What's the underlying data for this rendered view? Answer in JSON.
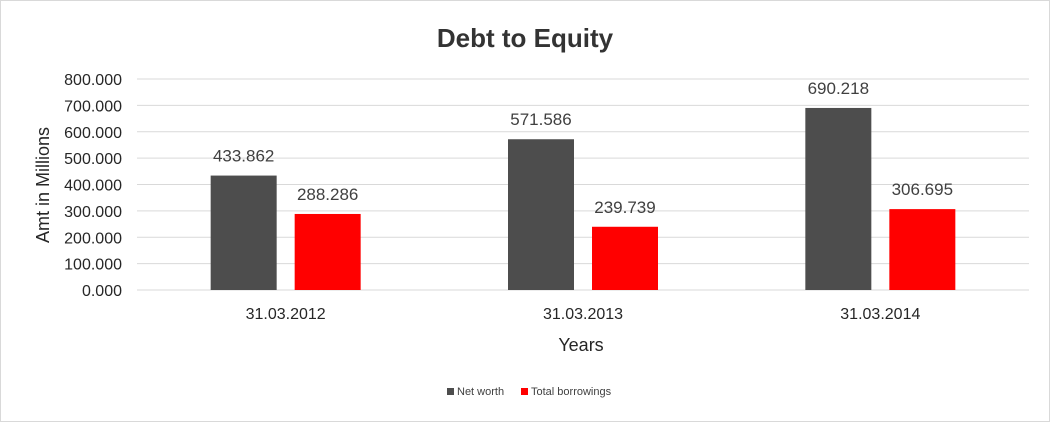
{
  "chart_data": {
    "type": "bar",
    "title": "Debt to Equity",
    "xlabel": "Years",
    "ylabel": "Amt in Millions",
    "categories": [
      "31.03.2012",
      "31.03.2013",
      "31.03.2014"
    ],
    "series": [
      {
        "name": "Net worth",
        "values": [
          433.862,
          571.586,
          690.218
        ],
        "color": "#4d4d4d"
      },
      {
        "name": "Total borrowings",
        "values": [
          288.286,
          239.739,
          306.695
        ],
        "color": "#ff0000"
      }
    ],
    "ylim": [
      0,
      800
    ],
    "yticks": [
      "0.000",
      "100.000",
      "200.000",
      "300.000",
      "400.000",
      "500.000",
      "600.000",
      "700.000",
      "800.000"
    ],
    "data_labels": [
      [
        "433.862",
        "571.586",
        "690.218"
      ],
      [
        "288.286",
        "239.739",
        "306.695"
      ]
    ],
    "grid": true,
    "legend_position": "bottom"
  }
}
